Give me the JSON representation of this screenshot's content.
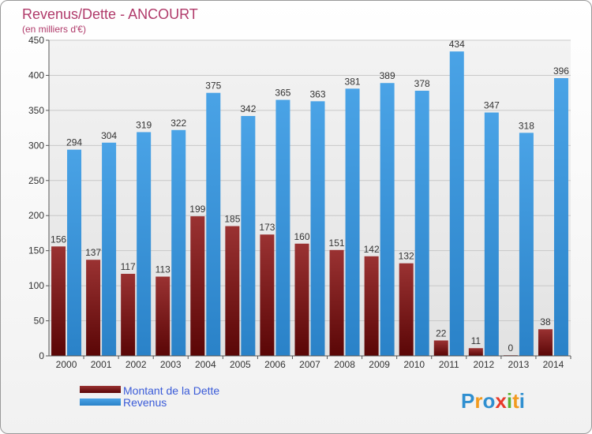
{
  "chart_data": {
    "type": "bar",
    "title": "Revenus/Dette - ANCOURT",
    "subtitle": "(en milliers d'€)",
    "categories": [
      "2000",
      "2001",
      "2002",
      "2003",
      "2004",
      "2005",
      "2006",
      "2007",
      "2008",
      "2009",
      "2010",
      "2011",
      "2012",
      "2013",
      "2014"
    ],
    "series": [
      {
        "name": "Montant de la Dette",
        "color": "#7a1a1a",
        "values": [
          156,
          137,
          117,
          113,
          199,
          185,
          173,
          160,
          151,
          142,
          132,
          22,
          11,
          0,
          38
        ]
      },
      {
        "name": "Revenus",
        "color": "#3d95d8",
        "values": [
          294,
          304,
          319,
          322,
          375,
          342,
          365,
          363,
          381,
          389,
          378,
          434,
          347,
          318,
          396
        ]
      }
    ],
    "ylim": [
      0,
      450
    ],
    "yticks": [
      0,
      50,
      100,
      150,
      200,
      250,
      300,
      350,
      400,
      450
    ],
    "grid": true,
    "legend_position": "bottom-left",
    "title_color": "#b03a6a",
    "legend_text_color": "#3a5bd8"
  },
  "branding": {
    "logo_text": "Proxiti"
  }
}
